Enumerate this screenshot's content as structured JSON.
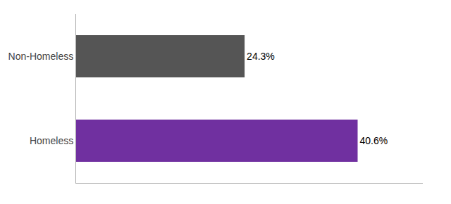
{
  "chart_data": {
    "type": "bar",
    "orientation": "horizontal",
    "categories": [
      "Homeless",
      "Non-Homeless"
    ],
    "values": [
      40.6,
      24.3
    ],
    "value_labels": [
      "40.6%",
      "24.3%"
    ],
    "colors": [
      "#7030A0",
      "#555555"
    ],
    "xlim": [
      0,
      50
    ],
    "grid": false,
    "data_labels": true,
    "tick_labels": "y"
  }
}
